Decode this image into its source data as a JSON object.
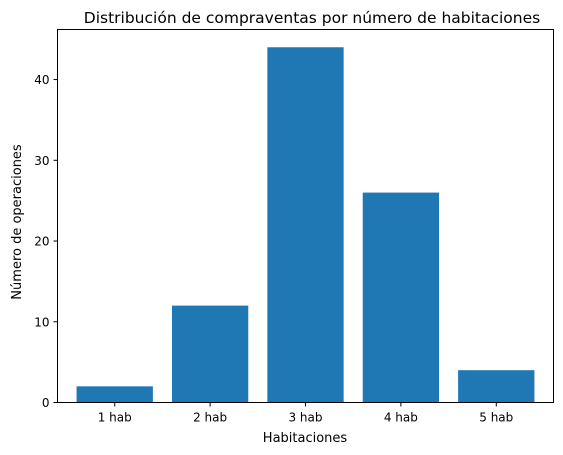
{
  "chart_data": {
    "type": "bar",
    "title": "Distribución de compraventas por número de habitaciones",
    "xlabel": "Habitaciones",
    "ylabel": "Número de operaciones",
    "categories": [
      "1 hab",
      "2 hab",
      "3 hab",
      "4 hab",
      "5 hab"
    ],
    "values": [
      2,
      12,
      44,
      26,
      4
    ],
    "ylim": [
      0,
      46.2
    ],
    "yticks": [
      0,
      10,
      20,
      30,
      40
    ],
    "grid": false,
    "bar_color": "#1f77b4"
  }
}
